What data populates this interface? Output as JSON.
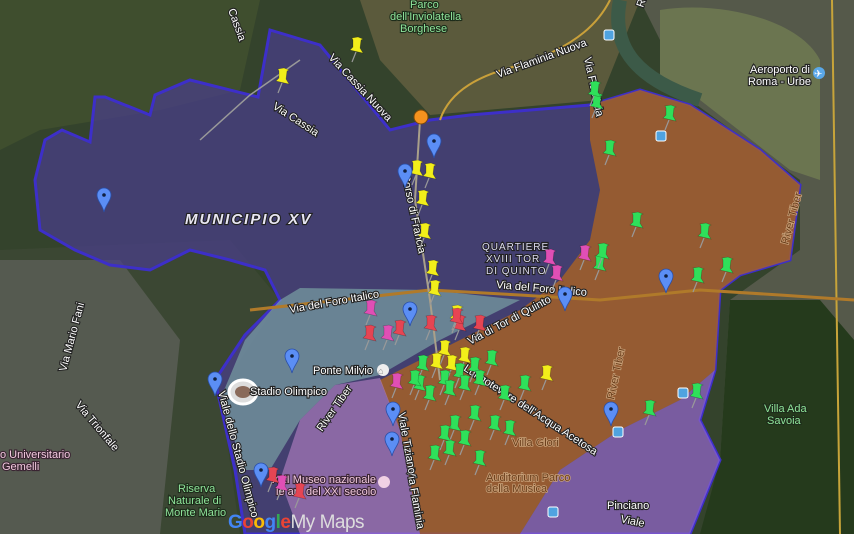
{
  "map": {
    "district_label": "MUNICIPIO XV",
    "quarter_label": [
      "QUARTIERE",
      "XVIII TOR",
      "DI QUINTO"
    ],
    "roads": {
      "via_cassia_top": "Cassia",
      "via_cassia": "Via Cassia",
      "via_cassia_nuova": "Via Cassia Nuova",
      "via_flaminia_nuova": "Via Flaminia Nuova",
      "via_flaminia_top": "Via Flaminia",
      "corso_francia": "Corso di Francia",
      "via_foro_italico_w": "Via del Foro Italico",
      "via_foro_italico_e": "Via del Foro Italico",
      "via_mario_fani": "Via Mario Fani",
      "via_trionfale": "Via Trionfale",
      "viale_stadio": "Viale dello Stadio Olimpico",
      "tor_di_quinto": "Via di Tor di Quinto",
      "lungotevere": "Lungotevere dell'Acqua Acetosa",
      "via_flaminia_s": "Via Flaminia",
      "viale": "Viale",
      "tiziano": "Viale Tiziano",
      "river_top": "R"
    },
    "places": {
      "parco": [
        "Parco",
        "dell'Inviolatella",
        "Borghese"
      ],
      "aeroporto": [
        "Aeroporto di",
        "Roma - Urbe"
      ],
      "ponte_milvio": "Ponte Milvio",
      "stadio": "Stadio Olimpico",
      "maxxi": [
        "XXI Museo nazionale",
        "le arti del XXI secolo"
      ],
      "riserva": [
        "Riserva",
        "Naturale di",
        "Monte Mario"
      ],
      "gemelli": [
        "o Universitario",
        "Gemelli"
      ],
      "villa_glori": "Villa Glori",
      "auditorium": [
        "Auditorium Parco",
        "della Musica"
      ],
      "villa_ada": [
        "Villa Ada",
        "Savoia"
      ],
      "pinciano": "Pinciano"
    },
    "river_labels": [
      "River Tiber",
      "River Tiber",
      "River Tiber"
    ],
    "logo": {
      "g1": "G",
      "o1": "o",
      "o2": "o",
      "g2": "g",
      "l": "l",
      "e": "e",
      "mymaps": "My Maps"
    },
    "colors": {
      "boundary": "#3d2fc9",
      "district_fill": "#4a3f8a",
      "tiber_area_fill": "#b0661e",
      "foro_area_fill": "#8fc7b8",
      "flaminio_fill": "#c48ad0",
      "pin_yellow": "#f2ee1a",
      "pin_green": "#2fe05a",
      "pin_magenta": "#e04fb5",
      "pin_red": "#e64553",
      "marker_blue": "#5b8ef5",
      "marker_orange": "#f5921e"
    },
    "icons": [
      "transit-station-icon",
      "airport-icon",
      "bridge-icon",
      "stadium-icon",
      "museum-icon",
      "pushpin-icon",
      "map-marker-icon"
    ]
  }
}
